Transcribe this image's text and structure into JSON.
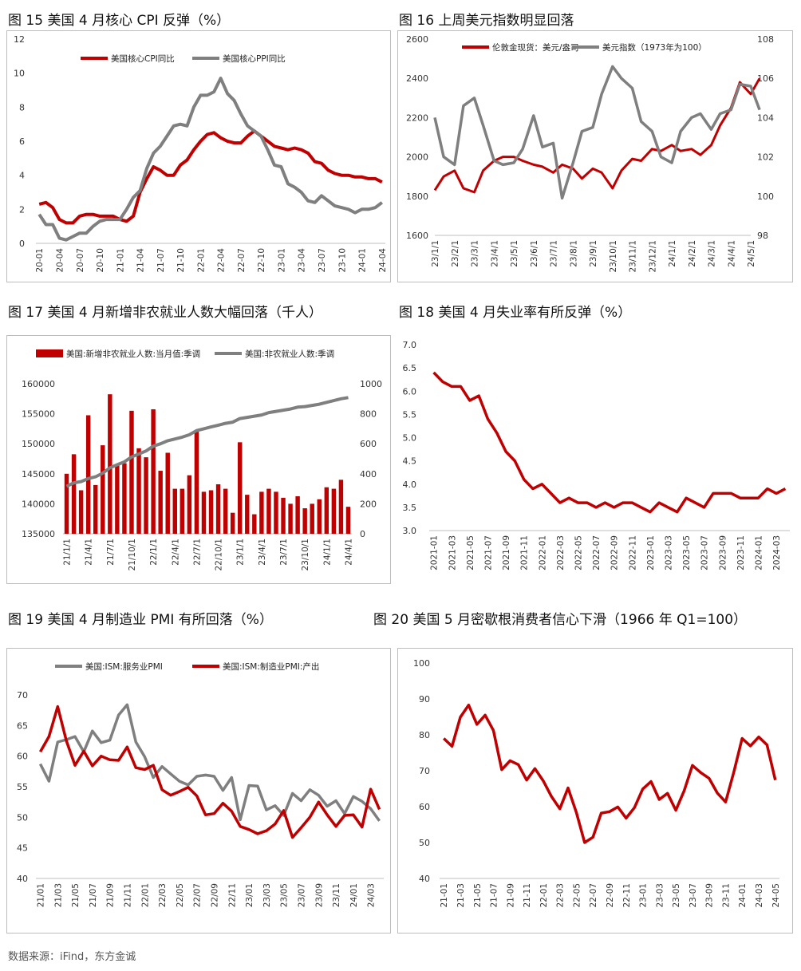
{
  "figures": [
    {
      "title": "图 15  美国 4 月核心 CPI 反弹（%）"
    },
    {
      "title": "图 16 上周美元指数明显回落"
    },
    {
      "title": "图 17  美国 4 月新增非农就业人数大幅回落（千人）"
    },
    {
      "title": "图 18  美国 4 月失业率有所反弹（%）"
    },
    {
      "title": "图 19  美国 4 月制造业 PMI 有所回落（%）"
    },
    {
      "title": "图 20  美国 5 月密歇根消费者信心下滑（1966 年 Q1=100）"
    }
  ],
  "source": "数据来源：iFind，东方金诚",
  "colors": {
    "red": "#c00000",
    "gray": "#7f7f7f",
    "axis": "#bfbfbf"
  },
  "chart_data": [
    {
      "type": "line",
      "categories": [
        "20-01",
        "20-02",
        "20-03",
        "20-04",
        "20-05",
        "20-06",
        "20-07",
        "20-08",
        "20-09",
        "20-10",
        "20-11",
        "20-12",
        "21-01",
        "21-02",
        "21-03",
        "21-04",
        "21-05",
        "21-06",
        "21-07",
        "21-08",
        "21-09",
        "21-10",
        "21-11",
        "21-12",
        "22-01",
        "22-02",
        "22-03",
        "22-04",
        "22-05",
        "22-06",
        "22-07",
        "22-08",
        "22-09",
        "22-10",
        "22-11",
        "22-12",
        "23-01",
        "23-02",
        "23-03",
        "23-04",
        "23-05",
        "23-06",
        "23-07",
        "23-08",
        "23-09",
        "23-10",
        "23-11",
        "23-12",
        "24-01",
        "24-02",
        "24-03",
        "24-04"
      ],
      "tick_labels": [
        "20-01",
        "20-04",
        "20-07",
        "20-10",
        "21-01",
        "21-04",
        "21-07",
        "21-10",
        "22-01",
        "22-04",
        "22-07",
        "22-10",
        "23-01",
        "23-04",
        "23-07",
        "23-10",
        "24-01",
        "24-04"
      ],
      "ylim": [
        0,
        12
      ],
      "yticks": [
        0,
        2,
        4,
        6,
        8,
        10,
        12
      ],
      "legend_position": "top",
      "series": [
        {
          "name": "美国核心CPI同比",
          "color": "#c00000",
          "values": [
            2.3,
            2.4,
            2.1,
            1.4,
            1.2,
            1.2,
            1.6,
            1.7,
            1.7,
            1.6,
            1.6,
            1.6,
            1.4,
            1.3,
            1.6,
            3.0,
            3.8,
            4.5,
            4.3,
            4.0,
            4.0,
            4.6,
            4.9,
            5.5,
            6.0,
            6.4,
            6.5,
            6.2,
            6.0,
            5.9,
            5.9,
            6.3,
            6.6,
            6.3,
            6.0,
            5.7,
            5.6,
            5.5,
            5.6,
            5.5,
            5.3,
            4.8,
            4.7,
            4.3,
            4.1,
            4.0,
            4.0,
            3.9,
            3.9,
            3.8,
            3.8,
            3.6
          ]
        },
        {
          "name": "美国核心PPI同比",
          "color": "#7f7f7f",
          "values": [
            1.7,
            1.1,
            1.1,
            0.3,
            0.2,
            0.4,
            0.6,
            0.6,
            1.0,
            1.3,
            1.4,
            1.4,
            1.4,
            2.0,
            2.7,
            3.1,
            4.4,
            5.3,
            5.7,
            6.3,
            6.9,
            7.0,
            6.9,
            8.0,
            8.7,
            8.7,
            8.9,
            9.7,
            8.8,
            8.4,
            7.6,
            6.9,
            6.6,
            6.3,
            5.5,
            4.6,
            4.5,
            3.5,
            3.3,
            3.0,
            2.5,
            2.4,
            2.8,
            2.5,
            2.2,
            2.1,
            2.0,
            1.8,
            2.0,
            2.0,
            2.1,
            2.4
          ]
        }
      ]
    },
    {
      "type": "line",
      "x_tick_labels": [
        "23/1/1",
        "23/2/1",
        "23/3/1",
        "23/4/1",
        "23/5/1",
        "23/6/1",
        "23/7/1",
        "23/8/1",
        "23/9/1",
        "23/10/1",
        "23/11/1",
        "23/12/1",
        "24/1/1",
        "24/2/1",
        "24/3/1",
        "24/4/1",
        "24/5/1"
      ],
      "ylim": [
        1600,
        2600
      ],
      "yticks": [
        1600,
        1800,
        2000,
        2200,
        2400,
        2600
      ],
      "y2lim": [
        98,
        108
      ],
      "y2ticks": [
        98,
        100,
        102,
        104,
        106,
        108
      ],
      "legend_position": "top",
      "series": [
        {
          "name": "伦敦金现货：美元/盎司",
          "axis": "left",
          "color": "#c00000",
          "x": [
            "23/1/1",
            "23/1/15",
            "23/2/1",
            "23/2/15",
            "23/3/1",
            "23/3/15",
            "23/4/1",
            "23/4/15",
            "23/5/1",
            "23/5/15",
            "23/6/1",
            "23/6/15",
            "23/7/1",
            "23/7/15",
            "23/8/1",
            "23/8/15",
            "23/9/1",
            "23/9/15",
            "23/10/1",
            "23/10/15",
            "23/11/1",
            "23/11/15",
            "23/12/1",
            "23/12/15",
            "24/1/1",
            "24/1/15",
            "24/2/1",
            "24/2/15",
            "24/3/1",
            "24/3/15",
            "24/4/1",
            "24/4/15",
            "24/5/1",
            "24/5/15"
          ],
          "values": [
            1830,
            1900,
            1930,
            1840,
            1820,
            1930,
            1980,
            2000,
            2000,
            1980,
            1960,
            1950,
            1920,
            1960,
            1940,
            1890,
            1940,
            1920,
            1840,
            1930,
            1990,
            1980,
            2040,
            2030,
            2060,
            2030,
            2040,
            2010,
            2060,
            2160,
            2250,
            2380,
            2320,
            2400
          ]
        },
        {
          "name": "美元指数（1973年为100）",
          "axis": "right",
          "color": "#7f7f7f",
          "x": [
            "23/1/1",
            "23/1/15",
            "23/2/1",
            "23/2/15",
            "23/3/1",
            "23/3/15",
            "23/4/1",
            "23/4/15",
            "23/5/1",
            "23/5/15",
            "23/6/1",
            "23/6/15",
            "23/7/1",
            "23/7/15",
            "23/8/1",
            "23/8/15",
            "23/9/1",
            "23/9/15",
            "23/10/1",
            "23/10/15",
            "23/11/1",
            "23/11/15",
            "23/12/1",
            "23/12/15",
            "24/1/1",
            "24/1/15",
            "24/2/1",
            "24/2/15",
            "24/3/1",
            "24/3/15",
            "24/4/1",
            "24/4/15",
            "24/5/1",
            "24/5/15"
          ],
          "values": [
            104.0,
            102.0,
            101.6,
            104.6,
            105.0,
            103.6,
            101.8,
            101.6,
            101.7,
            102.4,
            104.1,
            102.5,
            102.7,
            99.9,
            101.7,
            103.3,
            103.5,
            105.2,
            106.6,
            106.0,
            105.5,
            103.8,
            103.3,
            102.0,
            101.7,
            103.3,
            104.0,
            104.2,
            103.4,
            104.2,
            104.4,
            105.7,
            105.6,
            104.4
          ]
        }
      ]
    },
    {
      "type": "bar",
      "categories": [
        "21/1",
        "21/2",
        "21/3",
        "21/4",
        "21/5",
        "21/6",
        "21/7",
        "21/8",
        "21/9",
        "21/10",
        "21/11",
        "21/12",
        "22/1",
        "22/2",
        "22/3",
        "22/4",
        "22/5",
        "22/6",
        "22/7",
        "22/8",
        "22/9",
        "22/10",
        "22/11",
        "22/12",
        "23/1",
        "23/2",
        "23/3",
        "23/4",
        "23/5",
        "23/6",
        "23/7",
        "23/8",
        "23/9",
        "23/10",
        "23/11",
        "23/12",
        "24/1",
        "24/2",
        "24/3",
        "24/4"
      ],
      "tick_labels": [
        "21/1/1",
        "21/4/1",
        "21/7/1",
        "21/10/1",
        "22/1/1",
        "22/4/1",
        "22/7/1",
        "22/10/1",
        "23/1/1",
        "23/4/1",
        "23/7/1",
        "23/10/1",
        "24/1/1",
        "24/4/1"
      ],
      "ylim": [
        135000,
        160000
      ],
      "yticks": [
        135000,
        140000,
        145000,
        150000,
        155000,
        160000
      ],
      "y2lim": [
        0,
        1000
      ],
      "y2ticks": [
        0,
        200,
        400,
        600,
        800,
        1000
      ],
      "legend_position": "top",
      "series": [
        {
          "name": "美国:新增非农就业人数:当月值:季调",
          "axis": "right",
          "color": "#c00000",
          "values": [
            400,
            530,
            290,
            790,
            325,
            590,
            930,
            460,
            470,
            820,
            570,
            510,
            830,
            420,
            540,
            300,
            300,
            390,
            690,
            280,
            290,
            330,
            300,
            140,
            610,
            260,
            130,
            280,
            300,
            280,
            240,
            200,
            250,
            170,
            200,
            230,
            310,
            300,
            360,
            180
          ]
        },
        {
          "name": "美国:非农就业人数:季调",
          "axis": "left",
          "color": "#7f7f7f",
          "values": [
            142900,
            143500,
            143700,
            144200,
            144500,
            145100,
            146000,
            146500,
            147000,
            147800,
            148300,
            148800,
            149600,
            150000,
            150500,
            150800,
            151100,
            151500,
            152200,
            152500,
            152800,
            153100,
            153400,
            153600,
            154200,
            154400,
            154600,
            154800,
            155200,
            155400,
            155600,
            155800,
            156100,
            156200,
            156400,
            156600,
            156900,
            157200,
            157500,
            157700
          ]
        }
      ]
    },
    {
      "type": "line",
      "categories": [
        "2021-01",
        "2021-02",
        "2021-03",
        "2021-04",
        "2021-05",
        "2021-06",
        "2021-07",
        "2021-08",
        "2021-09",
        "2021-10",
        "2021-11",
        "2021-12",
        "2022-01",
        "2022-02",
        "2022-03",
        "2022-04",
        "2022-05",
        "2022-06",
        "2022-07",
        "2022-08",
        "2022-09",
        "2022-10",
        "2022-11",
        "2022-12",
        "2023-01",
        "2023-02",
        "2023-03",
        "2023-04",
        "2023-05",
        "2023-06",
        "2023-07",
        "2023-08",
        "2023-09",
        "2023-10",
        "2023-11",
        "2023-12",
        "2024-01",
        "2024-02",
        "2024-03",
        "2024-04"
      ],
      "tick_labels": [
        "2021-01",
        "2021-03",
        "2021-05",
        "2021-07",
        "2021-09",
        "2021-11",
        "2022-01",
        "2022-03",
        "2022-05",
        "2022-07",
        "2022-09",
        "2022-11",
        "2023-01",
        "2023-03",
        "2023-05",
        "2023-07",
        "2023-09",
        "2023-11",
        "2024-01",
        "2024-03"
      ],
      "ylim": [
        3.0,
        7.0
      ],
      "yticks": [
        3.0,
        3.5,
        4.0,
        4.5,
        5.0,
        5.5,
        6.0,
        6.5,
        7.0
      ],
      "series": [
        {
          "name": "",
          "color": "#c00000",
          "values": [
            6.4,
            6.2,
            6.1,
            6.1,
            5.8,
            5.9,
            5.4,
            5.1,
            4.7,
            4.5,
            4.1,
            3.9,
            4.0,
            3.8,
            3.6,
            3.7,
            3.6,
            3.6,
            3.5,
            3.6,
            3.5,
            3.6,
            3.6,
            3.5,
            3.4,
            3.6,
            3.5,
            3.4,
            3.7,
            3.6,
            3.5,
            3.8,
            3.8,
            3.8,
            3.7,
            3.7,
            3.7,
            3.9,
            3.8,
            3.9
          ]
        }
      ]
    },
    {
      "type": "line",
      "categories": [
        "21/01",
        "21/02",
        "21/03",
        "21/04",
        "21/05",
        "21/06",
        "21/07",
        "21/08",
        "21/09",
        "21/10",
        "21/11",
        "21/12",
        "22/01",
        "22/02",
        "22/03",
        "22/04",
        "22/05",
        "22/06",
        "22/07",
        "22/08",
        "22/09",
        "22/10",
        "22/11",
        "22/12",
        "23/01",
        "23/02",
        "23/03",
        "23/04",
        "23/05",
        "23/06",
        "23/07",
        "23/08",
        "23/09",
        "23/10",
        "23/11",
        "23/12",
        "24/01",
        "24/02",
        "24/03",
        "24/04"
      ],
      "tick_labels": [
        "21/01",
        "21/03",
        "21/05",
        "21/07",
        "21/09",
        "21/11",
        "22/01",
        "22/03",
        "22/05",
        "22/07",
        "22/09",
        "22/11",
        "23/01",
        "23/03",
        "23/05",
        "23/07",
        "23/09",
        "23/11",
        "24/01",
        "24/03"
      ],
      "ylim": [
        40,
        70
      ],
      "yticks": [
        40,
        45,
        50,
        55,
        60,
        65,
        70
      ],
      "legend_position": "top",
      "series": [
        {
          "name": "美国:ISM:服务业PMI",
          "color": "#7f7f7f",
          "values": [
            58.7,
            55.9,
            62.3,
            62.7,
            63.2,
            60.7,
            64.1,
            62.2,
            62.6,
            66.7,
            68.4,
            62.3,
            59.9,
            56.5,
            58.3,
            57.1,
            55.9,
            55.3,
            56.7,
            56.9,
            56.7,
            54.4,
            56.5,
            49.6,
            55.2,
            55.1,
            51.2,
            51.9,
            50.3,
            53.9,
            52.7,
            54.5,
            53.6,
            51.8,
            52.7,
            50.6,
            53.4,
            52.6,
            51.4,
            49.4
          ]
        },
        {
          "name": "美国:ISM:制造业PMI:产出",
          "color": "#c00000",
          "values": [
            60.7,
            63.2,
            68.1,
            62.5,
            58.5,
            60.8,
            58.4,
            60.0,
            59.4,
            59.3,
            61.5,
            58.1,
            57.8,
            58.5,
            54.5,
            53.6,
            54.2,
            54.9,
            53.5,
            50.4,
            50.6,
            52.3,
            51.0,
            48.5,
            48.0,
            47.3,
            47.8,
            48.9,
            51.1,
            46.7,
            48.3,
            50.0,
            52.5,
            50.4,
            48.5,
            50.3,
            50.4,
            48.4,
            54.6,
            51.3
          ]
        }
      ]
    },
    {
      "type": "line",
      "categories": [
        "21-01",
        "21-02",
        "21-03",
        "21-04",
        "21-05",
        "21-06",
        "21-07",
        "21-08",
        "21-09",
        "21-10",
        "21-11",
        "21-12",
        "22-01",
        "22-02",
        "22-03",
        "22-04",
        "22-05",
        "22-06",
        "22-07",
        "22-08",
        "22-09",
        "22-10",
        "22-11",
        "22-12",
        "23-01",
        "23-02",
        "23-03",
        "23-04",
        "23-05",
        "23-06",
        "23-07",
        "23-08",
        "23-09",
        "23-10",
        "23-11",
        "23-12",
        "24-01",
        "24-02",
        "24-03",
        "24-04",
        "24-05"
      ],
      "tick_labels": [
        "21-01",
        "21-03",
        "21-05",
        "21-07",
        "21-09",
        "21-11",
        "22-01",
        "22-03",
        "22-05",
        "22-07",
        "22-09",
        "22-11",
        "23-01",
        "23-03",
        "23-05",
        "23-07",
        "23-09",
        "23-11",
        "24-01",
        "24-03",
        "24-05"
      ],
      "ylim": [
        40,
        100
      ],
      "yticks": [
        40,
        50,
        60,
        70,
        80,
        90,
        100
      ],
      "series": [
        {
          "name": "",
          "color": "#c00000",
          "values": [
            79.0,
            76.8,
            84.9,
            88.3,
            82.9,
            85.5,
            81.2,
            70.3,
            72.8,
            71.7,
            67.4,
            70.6,
            67.2,
            62.8,
            59.4,
            65.2,
            58.4,
            50.0,
            51.5,
            58.2,
            58.6,
            59.9,
            56.8,
            59.7,
            64.9,
            67.0,
            62.0,
            63.7,
            59.0,
            64.4,
            71.5,
            69.5,
            67.9,
            63.8,
            61.3,
            69.7,
            79.0,
            76.9,
            79.4,
            77.2,
            67.4
          ]
        }
      ]
    }
  ]
}
